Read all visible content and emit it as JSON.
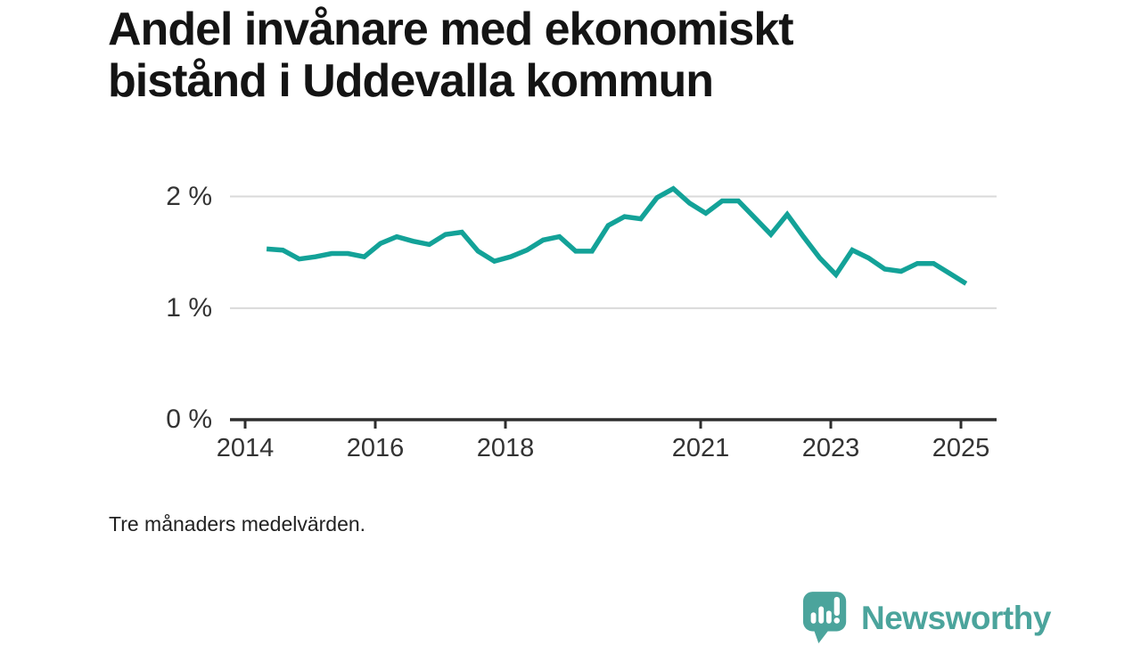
{
  "title": {
    "line1": "Andel invånare med ekonomiskt",
    "line2": "bistånd i Uddevalla kommun"
  },
  "footnote": "Tre månaders medelvärden.",
  "brand": {
    "name": "Newsworthy",
    "logo_icon": "bar-chart-speech-bubble-icon"
  },
  "colors": {
    "line": "#13A298",
    "brand": "#4BA49C",
    "grid": "#DADADA",
    "axis": "#2E2E2E",
    "tick_text": "#333333",
    "title_text": "#141414"
  },
  "chart_data": {
    "type": "line",
    "title": "Andel invånare med ekonomiskt bistånd i Uddevalla kommun",
    "subtitle": "Tre månaders medelvärden.",
    "series_name": "Andel invånare med ekonomiskt bistånd",
    "unit": "%",
    "grid": "horizontal",
    "legend": "none",
    "xlim": [
      2013.77,
      2025.55
    ],
    "ylim": [
      0,
      2.2
    ],
    "x_ticks": [
      {
        "value": 2014,
        "label": "2014"
      },
      {
        "value": 2016,
        "label": "2016"
      },
      {
        "value": 2018,
        "label": "2018"
      },
      {
        "value": 2021,
        "label": "2021"
      },
      {
        "value": 2023,
        "label": "2023"
      },
      {
        "value": 2025,
        "label": "2025"
      }
    ],
    "y_ticks": [
      {
        "value": 2,
        "label": "2 %"
      },
      {
        "value": 1,
        "label": "1 %"
      },
      {
        "value": 0,
        "label": "0 %"
      }
    ],
    "x": [
      2014.33,
      2014.58,
      2014.83,
      2015.08,
      2015.33,
      2015.58,
      2015.83,
      2016.08,
      2016.33,
      2016.58,
      2016.83,
      2017.08,
      2017.33,
      2017.58,
      2017.83,
      2018.08,
      2018.33,
      2018.58,
      2018.83,
      2019.08,
      2019.33,
      2019.58,
      2019.83,
      2020.08,
      2020.33,
      2020.58,
      2020.83,
      2021.08,
      2021.33,
      2021.58,
      2021.83,
      2022.08,
      2022.33,
      2022.58,
      2022.83,
      2023.08,
      2023.33,
      2023.58,
      2023.83,
      2024.08,
      2024.33,
      2024.58,
      2024.83,
      2025.08
    ],
    "values": [
      1.53,
      1.52,
      1.44,
      1.46,
      1.49,
      1.49,
      1.46,
      1.58,
      1.64,
      1.6,
      1.57,
      1.66,
      1.68,
      1.51,
      1.42,
      1.46,
      1.52,
      1.61,
      1.64,
      1.51,
      1.51,
      1.74,
      1.82,
      1.8,
      1.99,
      2.07,
      1.94,
      1.85,
      1.96,
      1.96,
      1.81,
      1.66,
      1.84,
      1.64,
      1.45,
      1.3,
      1.52,
      1.45,
      1.35,
      1.33,
      1.4,
      1.4,
      1.31,
      1.22
    ]
  }
}
